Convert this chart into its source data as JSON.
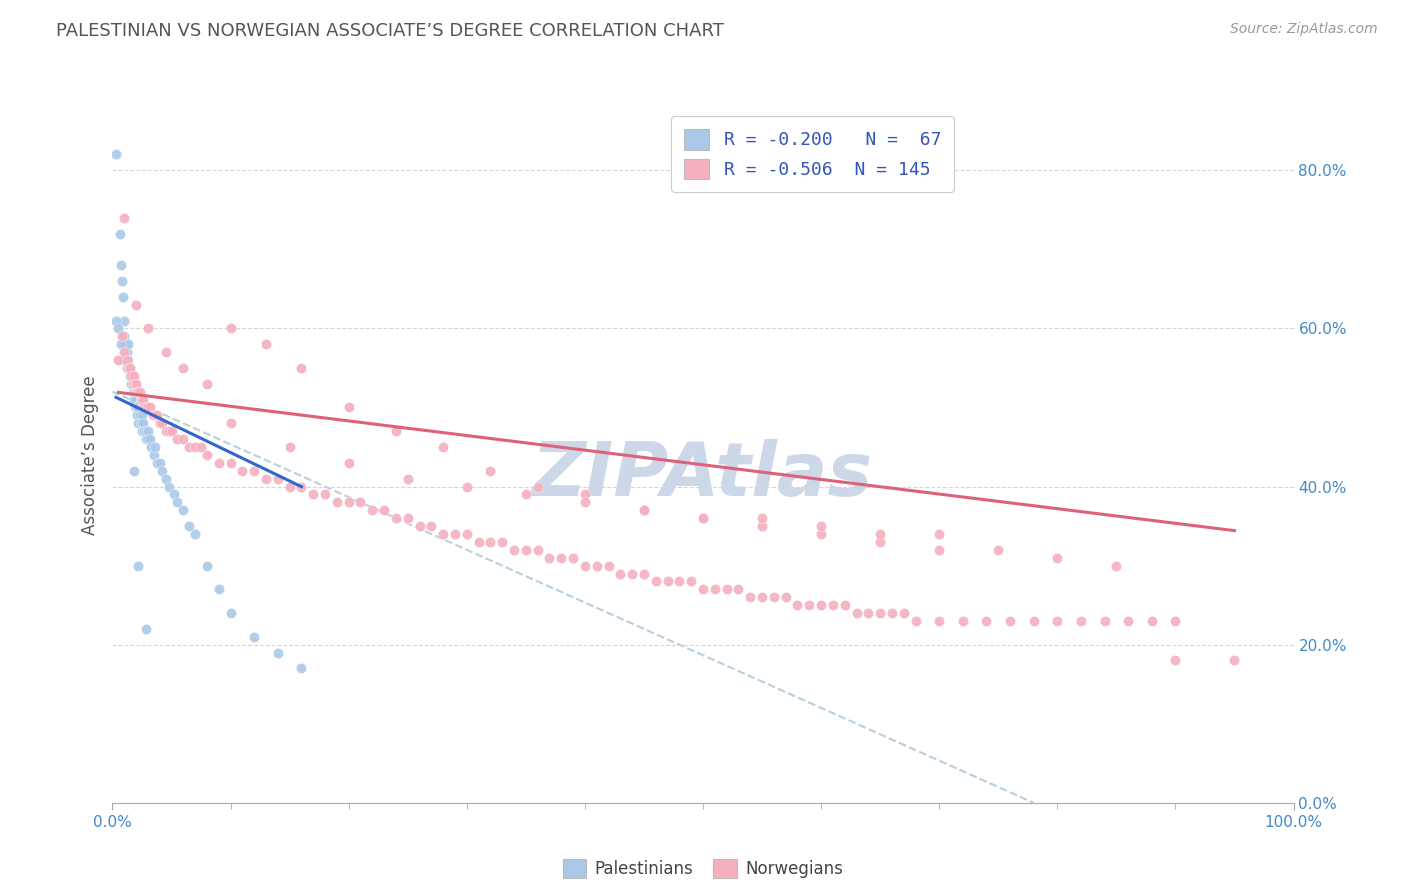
{
  "title": "PALESTINIAN VS NORWEGIAN ASSOCIATE’S DEGREE CORRELATION CHART",
  "source": "Source: ZipAtlas.com",
  "ylabel": "Associate’s Degree",
  "blue_R": -0.2,
  "blue_N": 67,
  "pink_R": -0.506,
  "pink_N": 145,
  "blue_color": "#aac9e8",
  "pink_color": "#f5b0bf",
  "blue_line_color": "#3366cc",
  "pink_line_color": "#e0607a",
  "dashed_line_color": "#b8cfe0",
  "title_color": "#555555",
  "source_color": "#999999",
  "legend_text_color": "#3355bb",
  "watermark_color": "#ccd8e8",
  "background_color": "#ffffff",
  "xlim": [
    0.0,
    1.0
  ],
  "ylim": [
    0.0,
    0.88
  ],
  "ytick_labels": [
    "0.0%",
    "20.0%",
    "40.0%",
    "60.0%",
    "80.0%"
  ],
  "ytick_values": [
    0.0,
    0.2,
    0.4,
    0.6,
    0.8
  ],
  "blue_x": [
    0.003,
    0.006,
    0.007,
    0.008,
    0.009,
    0.01,
    0.01,
    0.011,
    0.012,
    0.013,
    0.013,
    0.014,
    0.015,
    0.015,
    0.016,
    0.016,
    0.017,
    0.017,
    0.018,
    0.018,
    0.019,
    0.019,
    0.02,
    0.02,
    0.021,
    0.021,
    0.022,
    0.022,
    0.023,
    0.024,
    0.025,
    0.025,
    0.026,
    0.027,
    0.028,
    0.028,
    0.03,
    0.03,
    0.032,
    0.033,
    0.035,
    0.036,
    0.038,
    0.04,
    0.042,
    0.045,
    0.048,
    0.052,
    0.055,
    0.06,
    0.065,
    0.07,
    0.08,
    0.09,
    0.1,
    0.12,
    0.14,
    0.16,
    0.003,
    0.005,
    0.007,
    0.01,
    0.012,
    0.015,
    0.018,
    0.022,
    0.028
  ],
  "blue_y": [
    0.82,
    0.72,
    0.68,
    0.66,
    0.64,
    0.61,
    0.59,
    0.58,
    0.57,
    0.58,
    0.56,
    0.55,
    0.55,
    0.54,
    0.53,
    0.54,
    0.52,
    0.53,
    0.52,
    0.51,
    0.52,
    0.5,
    0.51,
    0.5,
    0.5,
    0.49,
    0.5,
    0.48,
    0.49,
    0.48,
    0.49,
    0.47,
    0.48,
    0.47,
    0.47,
    0.46,
    0.46,
    0.47,
    0.46,
    0.45,
    0.44,
    0.45,
    0.43,
    0.43,
    0.42,
    0.41,
    0.4,
    0.39,
    0.38,
    0.37,
    0.35,
    0.34,
    0.3,
    0.27,
    0.24,
    0.21,
    0.19,
    0.17,
    0.61,
    0.6,
    0.58,
    0.56,
    0.55,
    0.54,
    0.42,
    0.3,
    0.22
  ],
  "pink_x": [
    0.005,
    0.008,
    0.01,
    0.012,
    0.014,
    0.015,
    0.016,
    0.017,
    0.018,
    0.019,
    0.02,
    0.021,
    0.022,
    0.023,
    0.024,
    0.025,
    0.026,
    0.027,
    0.028,
    0.03,
    0.032,
    0.034,
    0.036,
    0.038,
    0.04,
    0.042,
    0.045,
    0.048,
    0.05,
    0.055,
    0.06,
    0.065,
    0.07,
    0.075,
    0.08,
    0.09,
    0.1,
    0.11,
    0.12,
    0.13,
    0.14,
    0.15,
    0.16,
    0.17,
    0.18,
    0.19,
    0.2,
    0.21,
    0.22,
    0.23,
    0.24,
    0.25,
    0.26,
    0.27,
    0.28,
    0.29,
    0.3,
    0.31,
    0.32,
    0.33,
    0.34,
    0.35,
    0.36,
    0.37,
    0.38,
    0.39,
    0.4,
    0.41,
    0.42,
    0.43,
    0.44,
    0.45,
    0.46,
    0.47,
    0.48,
    0.49,
    0.5,
    0.51,
    0.52,
    0.53,
    0.54,
    0.55,
    0.56,
    0.57,
    0.58,
    0.59,
    0.6,
    0.61,
    0.62,
    0.63,
    0.64,
    0.65,
    0.66,
    0.67,
    0.68,
    0.7,
    0.72,
    0.74,
    0.76,
    0.78,
    0.8,
    0.82,
    0.84,
    0.86,
    0.88,
    0.9,
    0.01,
    0.02,
    0.03,
    0.045,
    0.06,
    0.08,
    0.1,
    0.13,
    0.16,
    0.2,
    0.24,
    0.28,
    0.32,
    0.36,
    0.4,
    0.45,
    0.5,
    0.55,
    0.6,
    0.65,
    0.7,
    0.75,
    0.8,
    0.85,
    0.9,
    0.95,
    0.1,
    0.15,
    0.2,
    0.25,
    0.3,
    0.35,
    0.4,
    0.45,
    0.5,
    0.55,
    0.6,
    0.65,
    0.7
  ],
  "pink_y": [
    0.56,
    0.59,
    0.57,
    0.56,
    0.55,
    0.55,
    0.54,
    0.53,
    0.54,
    0.53,
    0.53,
    0.52,
    0.52,
    0.52,
    0.51,
    0.51,
    0.51,
    0.5,
    0.5,
    0.5,
    0.5,
    0.49,
    0.49,
    0.49,
    0.48,
    0.48,
    0.47,
    0.47,
    0.47,
    0.46,
    0.46,
    0.45,
    0.45,
    0.45,
    0.44,
    0.43,
    0.43,
    0.42,
    0.42,
    0.41,
    0.41,
    0.4,
    0.4,
    0.39,
    0.39,
    0.38,
    0.38,
    0.38,
    0.37,
    0.37,
    0.36,
    0.36,
    0.35,
    0.35,
    0.34,
    0.34,
    0.34,
    0.33,
    0.33,
    0.33,
    0.32,
    0.32,
    0.32,
    0.31,
    0.31,
    0.31,
    0.3,
    0.3,
    0.3,
    0.29,
    0.29,
    0.29,
    0.28,
    0.28,
    0.28,
    0.28,
    0.27,
    0.27,
    0.27,
    0.27,
    0.26,
    0.26,
    0.26,
    0.26,
    0.25,
    0.25,
    0.25,
    0.25,
    0.25,
    0.24,
    0.24,
    0.24,
    0.24,
    0.24,
    0.23,
    0.23,
    0.23,
    0.23,
    0.23,
    0.23,
    0.23,
    0.23,
    0.23,
    0.23,
    0.23,
    0.23,
    0.74,
    0.63,
    0.6,
    0.57,
    0.55,
    0.53,
    0.6,
    0.58,
    0.55,
    0.5,
    0.47,
    0.45,
    0.42,
    0.4,
    0.39,
    0.37,
    0.36,
    0.35,
    0.34,
    0.33,
    0.32,
    0.32,
    0.31,
    0.3,
    0.18,
    0.18,
    0.48,
    0.45,
    0.43,
    0.41,
    0.4,
    0.39,
    0.38,
    0.37,
    0.36,
    0.36,
    0.35,
    0.34,
    0.34
  ],
  "blue_line_x": [
    0.003,
    0.16
  ],
  "blue_line_y_intercept": 0.515,
  "blue_line_slope": -0.72,
  "pink_line_x": [
    0.005,
    0.95
  ],
  "pink_line_y_intercept": 0.52,
  "pink_line_slope": -0.185,
  "dash_line_x0": 0.0,
  "dash_line_y0": 0.52,
  "dash_line_x1": 0.78,
  "dash_line_y1": 0.0
}
